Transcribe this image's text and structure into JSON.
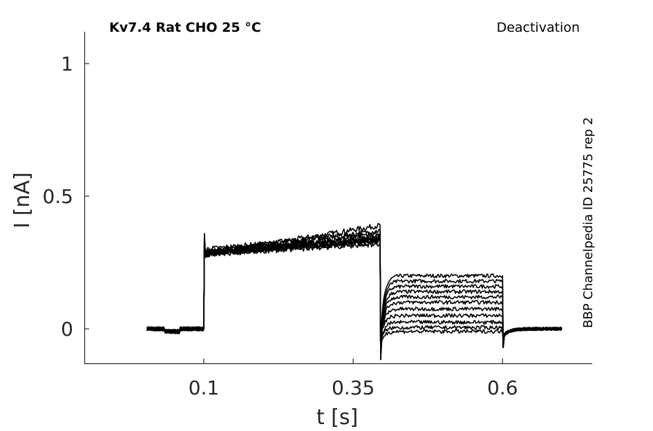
{
  "chart_data": {
    "type": "line",
    "title_left": "Kv7.4  Rat  CHO  25 °C",
    "title_right": "Deactivation",
    "side_label": "BBP Channelpedia ID 25775 rep 2",
    "xlabel": "t [s]",
    "ylabel": "I [nA]",
    "xlim": [
      -0.1,
      0.75
    ],
    "ylim": [
      -0.13,
      1.12
    ],
    "xticks": [
      0.1,
      0.35,
      0.6
    ],
    "xtick_labels": [
      "0.1",
      "0.35",
      "0.6"
    ],
    "yticks": [
      0,
      0.5,
      1
    ],
    "ytick_labels": [
      "0",
      "0.5",
      "1"
    ],
    "grid": false,
    "legend": "none",
    "protocol": {
      "pulse_on": 0.1,
      "pulse_off": 0.395,
      "tail_off": 0.6,
      "t_start": 0.005,
      "t_end": 0.7
    },
    "series": [
      {
        "activation_start": 0.28,
        "activation_end": 0.39,
        "tail": 0.2
      },
      {
        "activation_start": 0.29,
        "activation_end": 0.37,
        "tail": 0.18
      },
      {
        "activation_start": 0.3,
        "activation_end": 0.36,
        "tail": 0.16
      },
      {
        "activation_start": 0.29,
        "activation_end": 0.35,
        "tail": 0.14
      },
      {
        "activation_start": 0.28,
        "activation_end": 0.34,
        "tail": 0.12
      },
      {
        "activation_start": 0.29,
        "activation_end": 0.345,
        "tail": 0.1
      },
      {
        "activation_start": 0.285,
        "activation_end": 0.335,
        "tail": 0.075
      },
      {
        "activation_start": 0.28,
        "activation_end": 0.33,
        "tail": 0.05
      },
      {
        "activation_start": 0.285,
        "activation_end": 0.33,
        "tail": 0.025
      },
      {
        "activation_start": 0.28,
        "activation_end": 0.32,
        "tail": 0.005
      },
      {
        "activation_start": 0.29,
        "activation_end": 0.34,
        "tail": -0.01
      }
    ]
  }
}
